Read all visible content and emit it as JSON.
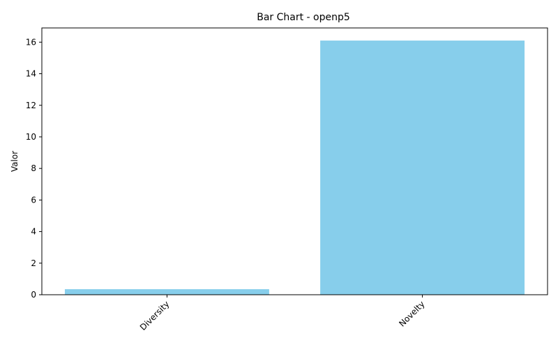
{
  "chart_data": {
    "type": "bar",
    "title": "Bar Chart - openp5",
    "xlabel": "",
    "ylabel": "Valor",
    "categories": [
      "Diversity",
      "Novelty"
    ],
    "values": [
      0.35,
      16.1
    ],
    "ylim": [
      0,
      16.9
    ],
    "yticks": [
      0,
      2,
      4,
      6,
      8,
      10,
      12,
      14,
      16
    ],
    "bar_color": "#87CEEB",
    "grid": false,
    "xtick_rotation": 45
  }
}
